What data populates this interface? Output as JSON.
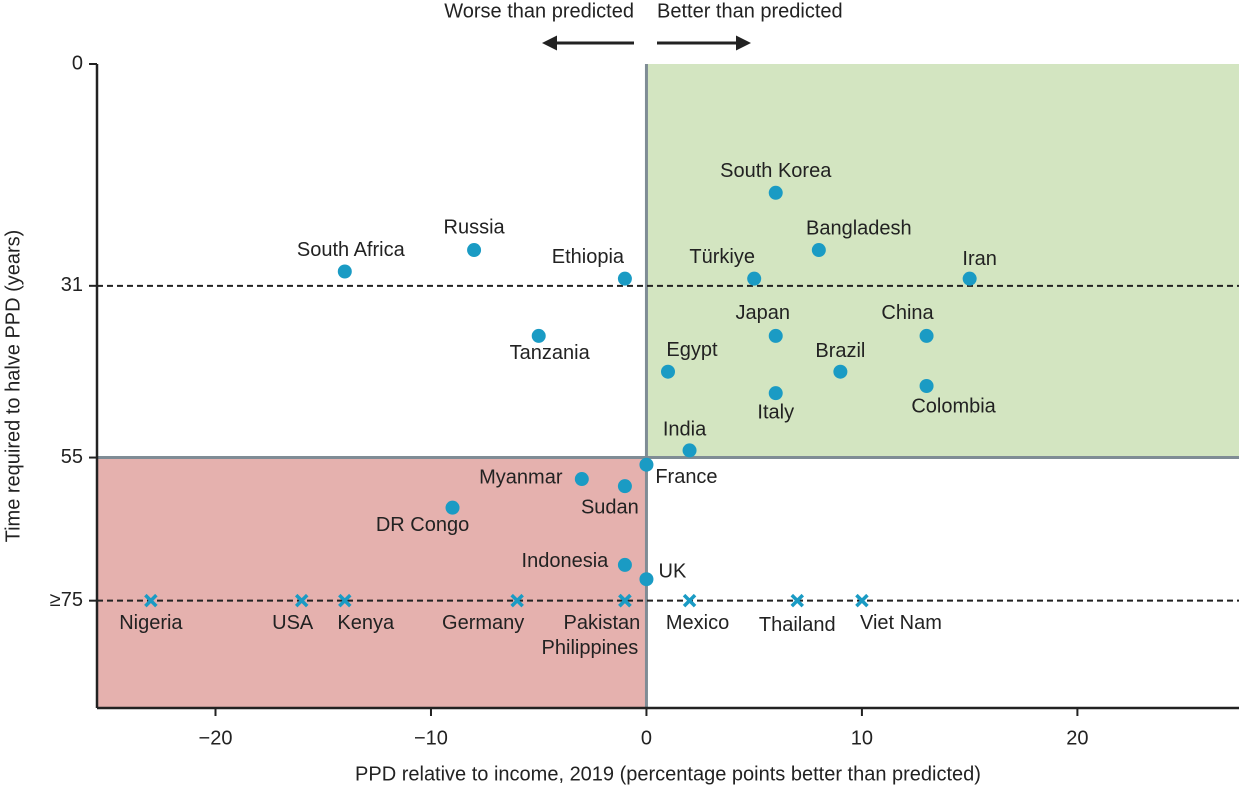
{
  "chart_data": {
    "type": "scatter",
    "x_label": "PPD relative to income, 2019 (percentage points better than predicted)",
    "y_label": "Time required to halve PPD (years)",
    "annotations": {
      "left": "Worse than predicted",
      "right": "Better than predicted"
    },
    "xlim": [
      -25.5,
      27.5
    ],
    "ylim": [
      90,
      0
    ],
    "xticks": [
      {
        "value": -20,
        "label": "−20"
      },
      {
        "value": -10,
        "label": "−10"
      },
      0,
      10,
      20
    ],
    "yticks": [
      0,
      31,
      55,
      {
        "value": 75,
        "label": "≥75"
      }
    ],
    "quadrant_x": 0,
    "quadrant_y": 55,
    "dashed_lines": [
      31,
      75
    ],
    "better_color": "#d3e5c1",
    "worse_color": "#e5b1ae",
    "marker_color": "#1a9bc4",
    "points": [
      {
        "label": "South Korea",
        "x": 6,
        "y": 18,
        "marker": "circle"
      },
      {
        "label": "Russia",
        "x": -8,
        "y": 26,
        "marker": "circle"
      },
      {
        "label": "South Africa",
        "x": -14,
        "y": 29,
        "marker": "circle"
      },
      {
        "label": "Ethiopia",
        "x": -1,
        "y": 30,
        "marker": "circle"
      },
      {
        "label": "Bangladesh",
        "x": 8,
        "y": 26,
        "marker": "circle"
      },
      {
        "label": "Türkiye",
        "x": 5,
        "y": 30,
        "marker": "circle"
      },
      {
        "label": "Iran",
        "x": 15,
        "y": 30,
        "marker": "circle"
      },
      {
        "label": "Tanzania",
        "x": -5,
        "y": 38,
        "marker": "circle"
      },
      {
        "label": "Japan",
        "x": 6,
        "y": 38,
        "marker": "circle"
      },
      {
        "label": "China",
        "x": 13,
        "y": 38,
        "marker": "circle"
      },
      {
        "label": "Egypt",
        "x": 1,
        "y": 43,
        "marker": "circle"
      },
      {
        "label": "Brazil",
        "x": 9,
        "y": 43,
        "marker": "circle"
      },
      {
        "label": "Italy",
        "x": 6,
        "y": 46,
        "marker": "circle"
      },
      {
        "label": "Colombia",
        "x": 13,
        "y": 45,
        "marker": "circle"
      },
      {
        "label": "India",
        "x": 2,
        "y": 54,
        "marker": "circle"
      },
      {
        "label": "France",
        "x": 0,
        "y": 56,
        "marker": "circle"
      },
      {
        "label": "Myanmar",
        "x": -3,
        "y": 58,
        "marker": "circle"
      },
      {
        "label": "Sudan",
        "x": -1,
        "y": 59,
        "marker": "circle"
      },
      {
        "label": "DR Congo",
        "x": -9,
        "y": 62,
        "marker": "circle"
      },
      {
        "label": "Indonesia",
        "x": -1,
        "y": 70,
        "marker": "circle"
      },
      {
        "label": "UK",
        "x": 0,
        "y": 72,
        "marker": "circle"
      },
      {
        "label": "Nigeria",
        "x": -23,
        "y": 75,
        "marker": "x"
      },
      {
        "label": "USA",
        "x": -16,
        "y": 75,
        "marker": "x"
      },
      {
        "label": "Kenya",
        "x": -14,
        "y": 75,
        "marker": "x"
      },
      {
        "label": "Germany",
        "x": -6,
        "y": 75,
        "marker": "x"
      },
      {
        "label": "Pakistan",
        "x": -1,
        "y": 75,
        "marker": "x"
      },
      {
        "label": "Philippines",
        "x": -1,
        "y": 75,
        "marker": "x"
      },
      {
        "label": "Mexico",
        "x": 2,
        "y": 75,
        "marker": "x"
      },
      {
        "label": "Thailand",
        "x": 7,
        "y": 75,
        "marker": "x"
      },
      {
        "label": "Viet Nam",
        "x": 10,
        "y": 75,
        "marker": "x"
      }
    ]
  }
}
